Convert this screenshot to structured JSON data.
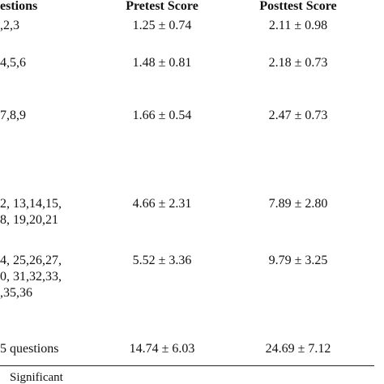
{
  "header": {
    "questions": "estions",
    "pretest": "Pretest Score",
    "posttest": "Posttest Score"
  },
  "table": {
    "rows": [
      [
        [
          ",2,3"
        ],
        "1.25 ± 0.74",
        "2.11 ± 0.98"
      ],
      [
        [
          "4,5,6"
        ],
        "1.48 ± 0.81",
        "2.18 ± 0.73"
      ],
      [
        [
          "7,8,9"
        ],
        "1.66 ± 0.54",
        "2.47 ± 0.73"
      ],
      [
        [
          "2, 13,14,15,",
          "8, 19,20,21"
        ],
        "4.66 ± 2.31",
        "7.89 ± 2.80"
      ],
      [
        [
          "4, 25,26,27,",
          "0, 31,32,33,",
          ",35,36"
        ],
        "5.52 ± 3.36",
        "9.79 ± 3.25"
      ],
      [
        [
          "5 questions"
        ],
        "14.74 ± 6.03",
        "24.69 ± 7.12"
      ]
    ]
  },
  "footer": {
    "note": "Significant"
  }
}
